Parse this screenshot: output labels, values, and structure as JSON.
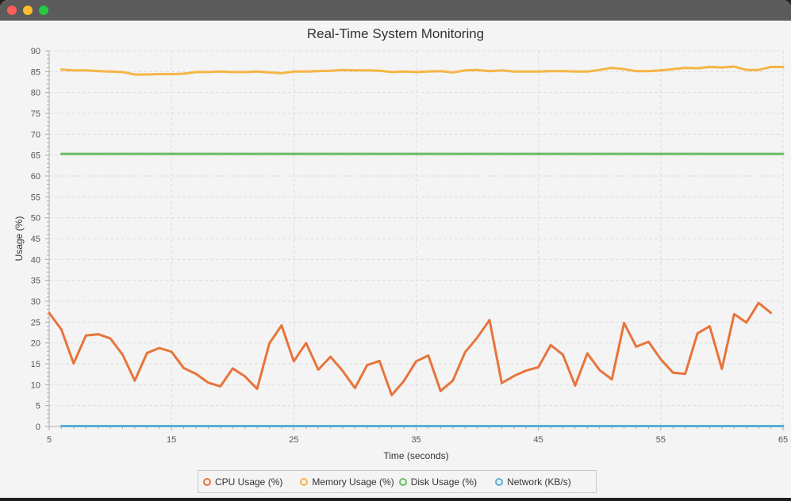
{
  "window": {
    "controls": [
      "close",
      "minimize",
      "zoom"
    ]
  },
  "chart_data": {
    "type": "line",
    "title": "Real-Time System Monitoring",
    "xlabel": "Time (seconds)",
    "ylabel": "Usage (%)",
    "xlim": [
      5,
      65
    ],
    "ylim": [
      0,
      90
    ],
    "x_ticks": [
      5,
      15,
      25,
      35,
      45,
      55,
      65
    ],
    "y_ticks": [
      0,
      5,
      10,
      15,
      20,
      25,
      30,
      35,
      40,
      45,
      50,
      55,
      60,
      65,
      70,
      75,
      80,
      85,
      90
    ],
    "grid": true,
    "legend_position": "bottom",
    "series": [
      {
        "name": "CPU Usage (%)",
        "color": "#e8743b",
        "x": [
          5,
          6,
          7,
          8,
          9,
          10,
          11,
          12,
          13,
          14,
          15,
          16,
          17,
          18,
          19,
          20,
          21,
          22,
          23,
          24,
          25,
          26,
          27,
          28,
          29,
          30,
          31,
          32,
          33,
          34,
          35,
          36,
          37,
          38,
          39,
          40,
          41,
          42,
          43,
          44,
          45,
          46,
          47,
          48,
          49,
          50,
          51,
          52,
          53,
          54,
          55,
          56,
          57,
          58,
          59,
          60,
          61,
          62,
          63,
          64
        ],
        "values": [
          27.2,
          23.2,
          15.1,
          21.8,
          22.1,
          21.1,
          17.2,
          11.0,
          17.6,
          18.8,
          17.9,
          14.0,
          12.6,
          10.5,
          9.6,
          13.9,
          12.0,
          9.0,
          19.9,
          24.2,
          15.6,
          20.0,
          13.6,
          16.7,
          13.3,
          9.2,
          14.7,
          15.7,
          7.5,
          10.9,
          15.6,
          17.0,
          8.5,
          11.0,
          17.8,
          21.3,
          25.5,
          10.4,
          12.1,
          13.4,
          14.2,
          19.5,
          17.2,
          9.8,
          17.5,
          13.5,
          11.3,
          24.8,
          19.1,
          20.3,
          16.1,
          12.9,
          12.6,
          22.3,
          24.0,
          13.8,
          26.9,
          24.9,
          29.6,
          27.2
        ]
      },
      {
        "name": "Memory Usage (%)",
        "color": "#f5b545",
        "x": [
          6,
          7,
          8,
          9,
          10,
          11,
          12,
          13,
          14,
          15,
          16,
          17,
          18,
          19,
          20,
          21,
          22,
          23,
          24,
          25,
          26,
          27,
          28,
          29,
          30,
          31,
          32,
          33,
          34,
          35,
          36,
          37,
          38,
          39,
          40,
          41,
          42,
          43,
          44,
          45,
          46,
          47,
          48,
          49,
          50,
          51,
          52,
          53,
          54,
          55,
          56,
          57,
          58,
          59,
          60,
          61,
          62,
          63,
          64,
          65
        ],
        "values": [
          85.5,
          85.3,
          85.3,
          85.1,
          85.0,
          84.9,
          84.3,
          84.3,
          84.4,
          84.4,
          84.5,
          84.9,
          84.9,
          85.0,
          84.9,
          84.9,
          85.0,
          84.8,
          84.6,
          85.0,
          85.0,
          85.1,
          85.2,
          85.4,
          85.3,
          85.3,
          85.2,
          84.9,
          85.0,
          84.9,
          85.0,
          85.1,
          84.8,
          85.3,
          85.4,
          85.1,
          85.3,
          85.0,
          85.0,
          85.0,
          85.1,
          85.1,
          85.0,
          85.0,
          85.4,
          85.9,
          85.6,
          85.1,
          85.1,
          85.3,
          85.6,
          85.9,
          85.8,
          86.1,
          86.0,
          86.2,
          85.4,
          85.4,
          86.1,
          86.1
        ]
      },
      {
        "name": "Disk Usage (%)",
        "color": "#6bbd63",
        "x": [
          6,
          65
        ],
        "values": [
          65.3,
          65.3
        ]
      },
      {
        "name": "Network (KB/s)",
        "color": "#5aaed6",
        "x": [
          6,
          65
        ],
        "values": [
          0.1,
          0.1
        ]
      }
    ]
  }
}
